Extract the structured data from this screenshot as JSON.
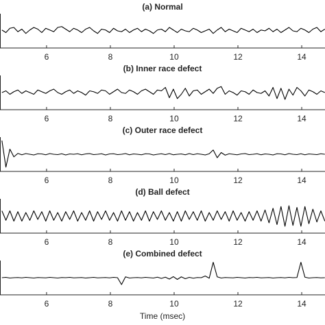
{
  "chart_data": [
    {
      "type": "line",
      "title": "(a) Normal",
      "color": "#000000",
      "xlim": [
        4.54,
        14.73
      ],
      "xticks": [
        6,
        8,
        10,
        12,
        14
      ],
      "ylim": [
        -1,
        1
      ],
      "x": [
        4.6,
        4.725,
        4.85,
        4.975,
        5.1,
        5.225,
        5.35,
        5.475,
        5.6,
        5.725,
        5.85,
        5.975,
        6.1,
        6.225,
        6.35,
        6.475,
        6.6,
        6.725,
        6.85,
        6.975,
        7.1,
        7.225,
        7.35,
        7.475,
        7.6,
        7.725,
        7.85,
        7.975,
        8.1,
        8.225,
        8.35,
        8.475,
        8.6,
        8.725,
        8.85,
        8.975,
        9.1,
        9.225,
        9.35,
        9.475,
        9.6,
        9.725,
        9.85,
        9.975,
        10.1,
        10.225,
        10.35,
        10.475,
        10.6,
        10.725,
        10.85,
        10.975,
        11.1,
        11.225,
        11.35,
        11.475,
        11.6,
        11.725,
        11.85,
        11.975,
        12.1,
        12.225,
        12.35,
        12.475,
        12.6,
        12.725,
        12.85,
        12.975,
        13.1,
        13.225,
        13.35,
        13.475,
        13.6,
        13.725,
        13.85,
        13.975,
        14.1,
        14.225,
        14.35,
        14.475,
        14.6,
        14.725
      ],
      "values": [
        0.05,
        -0.1,
        0.15,
        0.2,
        -0.05,
        0.1,
        -0.15,
        0.05,
        0.2,
        0.1,
        -0.1,
        0.15,
        0.05,
        -0.05,
        0.2,
        0.25,
        0.1,
        -0.05,
        0.15,
        0.05,
        -0.1,
        0.1,
        0.2,
        0,
        -0.15,
        0.1,
        0.05,
        -0.1,
        0.15,
        0,
        -0.05,
        0.1,
        -0.1,
        0.05,
        0.15,
        -0.05,
        0.1,
        0,
        -0.15,
        0.05,
        0.1,
        -0.05,
        0.2,
        0.05,
        -0.1,
        0.1,
        0,
        -0.05,
        0.15,
        0.05,
        -0.1,
        0,
        0.1,
        -0.15,
        0.05,
        0.2,
        -0.05,
        0.1,
        0,
        -0.1,
        0.15,
        0.05,
        -0.05,
        0.1,
        -0.1,
        0.05,
        0,
        0.15,
        -0.05,
        0.1,
        -0.1,
        0.05,
        0.2,
        0,
        -0.05,
        0.15,
        0.05,
        -0.1,
        0.1,
        0.2,
        -0.05,
        0.1
      ]
    },
    {
      "type": "line",
      "title": "(b) Inner race defect",
      "color": "#000000",
      "xlim": [
        4.54,
        14.73
      ],
      "xticks": [
        6,
        8,
        10,
        12,
        14
      ],
      "ylim": [
        -1,
        1
      ],
      "x": [
        4.6,
        4.725,
        4.85,
        4.975,
        5.1,
        5.225,
        5.35,
        5.475,
        5.6,
        5.725,
        5.85,
        5.975,
        6.1,
        6.225,
        6.35,
        6.475,
        6.6,
        6.725,
        6.85,
        6.975,
        7.1,
        7.225,
        7.35,
        7.475,
        7.6,
        7.725,
        7.85,
        7.975,
        8.1,
        8.225,
        8.35,
        8.475,
        8.6,
        8.725,
        8.85,
        8.975,
        9.1,
        9.225,
        9.35,
        9.475,
        9.6,
        9.725,
        9.85,
        9.975,
        10.1,
        10.225,
        10.35,
        10.475,
        10.6,
        10.725,
        10.85,
        10.975,
        11.1,
        11.225,
        11.35,
        11.475,
        11.6,
        11.725,
        11.85,
        11.975,
        12.1,
        12.225,
        12.35,
        12.475,
        12.6,
        12.725,
        12.85,
        12.975,
        13.1,
        13.225,
        13.35,
        13.475,
        13.6,
        13.725,
        13.85,
        13.975,
        14.1,
        14.225,
        14.35,
        14.475,
        14.6,
        14.725
      ],
      "values": [
        0,
        0.1,
        -0.1,
        0.05,
        0.15,
        -0.05,
        0.1,
        0,
        -0.1,
        0.15,
        0.05,
        -0.05,
        0.1,
        0.2,
        0,
        -0.1,
        0.05,
        0.15,
        -0.05,
        0.1,
        0,
        -0.15,
        0.1,
        0.05,
        -0.05,
        0.15,
        0.1,
        -0.1,
        0.05,
        0.2,
        0,
        -0.05,
        0.15,
        0.05,
        -0.1,
        0.1,
        0.2,
        0.05,
        -0.1,
        0.15,
        0.1,
        0.3,
        -0.3,
        0.2,
        -0.35,
        -0.1,
        0.25,
        -0.2,
        0.1,
        0.15,
        -0.1,
        0.05,
        0.2,
        -0.05,
        0.25,
        0.35,
        -0.1,
        0.1,
        0,
        -0.15,
        0.1,
        0.05,
        -0.1,
        0.15,
        0,
        -0.05,
        0.1,
        -0.2,
        0.3,
        -0.35,
        0.25,
        -0.4,
        0.2,
        -0.15,
        0.3,
        0.1,
        -0.2,
        0.15,
        0.05,
        -0.1,
        0.1,
        0
      ]
    },
    {
      "type": "line",
      "title": "(c) Outer race defect",
      "color": "#000000",
      "xlim": [
        4.54,
        14.73
      ],
      "xticks": [
        6,
        8,
        10,
        12,
        14
      ],
      "ylim": [
        -1,
        1
      ],
      "x": [
        4.6,
        4.725,
        4.85,
        4.975,
        5.1,
        5.225,
        5.35,
        5.475,
        5.6,
        5.725,
        5.85,
        5.975,
        6.1,
        6.225,
        6.35,
        6.475,
        6.6,
        6.725,
        6.85,
        6.975,
        7.1,
        7.225,
        7.35,
        7.475,
        7.6,
        7.725,
        7.85,
        7.975,
        8.1,
        8.225,
        8.35,
        8.475,
        8.6,
        8.725,
        8.85,
        8.975,
        9.1,
        9.225,
        9.35,
        9.475,
        9.6,
        9.725,
        9.85,
        9.975,
        10.1,
        10.225,
        10.35,
        10.475,
        10.6,
        10.725,
        10.85,
        10.975,
        11.1,
        11.225,
        11.35,
        11.475,
        11.6,
        11.725,
        11.85,
        11.975,
        12.1,
        12.225,
        12.35,
        12.475,
        12.6,
        12.725,
        12.85,
        12.975,
        13.1,
        13.225,
        13.35,
        13.475,
        13.6,
        13.725,
        13.85,
        13.975,
        14.1,
        14.225,
        14.35,
        14.475,
        14.6,
        14.725
      ],
      "values": [
        0.8,
        -0.75,
        0.3,
        -0.15,
        0.05,
        -0.03,
        0.04,
        0,
        -0.04,
        0.03,
        0.02,
        -0.03,
        0.04,
        0,
        -0.02,
        0.03,
        -0.04,
        0.02,
        0,
        0.03,
        -0.03,
        0.02,
        0.04,
        -0.02,
        0,
        0.03,
        -0.04,
        0.02,
        0.03,
        -0.02,
        0,
        0.04,
        -0.03,
        0.02,
        0,
        -0.03,
        0.03,
        0.02,
        -0.04,
        0,
        0.03,
        -0.02,
        0.04,
        -0.03,
        0,
        0.02,
        -0.03,
        0.04,
        -0.02,
        0.03,
        0,
        -0.04,
        0.03,
        0.25,
        -0.2,
        0.1,
        -0.05,
        0.03,
        0,
        -0.03,
        0.02,
        0.04,
        -0.02,
        0,
        0.03,
        -0.03,
        0.02,
        0,
        -0.04,
        0.03,
        0.02,
        -0.03,
        0.04,
        0,
        -0.02,
        0.03,
        -0.03,
        0.02,
        0,
        -0.02,
        0.03,
        0
      ]
    },
    {
      "type": "line",
      "title": "(d) Ball defect",
      "color": "#000000",
      "xlim": [
        4.54,
        14.73
      ],
      "xticks": [
        6,
        8,
        10,
        12,
        14
      ],
      "ylim": [
        -1,
        1
      ],
      "x": [
        4.6,
        4.725,
        4.85,
        4.975,
        5.1,
        5.225,
        5.35,
        5.475,
        5.6,
        5.725,
        5.85,
        5.975,
        6.1,
        6.225,
        6.35,
        6.475,
        6.6,
        6.725,
        6.85,
        6.975,
        7.1,
        7.225,
        7.35,
        7.475,
        7.6,
        7.725,
        7.85,
        7.975,
        8.1,
        8.225,
        8.35,
        8.475,
        8.6,
        8.725,
        8.85,
        8.975,
        9.1,
        9.225,
        9.35,
        9.475,
        9.6,
        9.725,
        9.85,
        9.975,
        10.1,
        10.225,
        10.35,
        10.475,
        10.6,
        10.725,
        10.85,
        10.975,
        11.1,
        11.225,
        11.35,
        11.475,
        11.6,
        11.725,
        11.85,
        11.975,
        12.1,
        12.225,
        12.35,
        12.475,
        12.6,
        12.725,
        12.85,
        12.975,
        13.1,
        13.225,
        13.35,
        13.475,
        13.6,
        13.725,
        13.85,
        13.975,
        14.1,
        14.225,
        14.35,
        14.475,
        14.6,
        14.725
      ],
      "values": [
        0.3,
        -0.25,
        0.3,
        -0.3,
        0.25,
        -0.3,
        0.2,
        -0.25,
        0.3,
        -0.2,
        0.25,
        -0.3,
        0.3,
        -0.25,
        0.2,
        -0.3,
        0.25,
        -0.2,
        0.3,
        -0.3,
        0.2,
        -0.25,
        0.3,
        -0.3,
        0.25,
        -0.2,
        0.3,
        -0.25,
        0.2,
        -0.3,
        0.3,
        -0.25,
        0.25,
        -0.3,
        0.2,
        -0.25,
        0.3,
        -0.3,
        0.25,
        -0.2,
        0.3,
        -0.25,
        0.2,
        -0.3,
        0.25,
        -0.3,
        0.3,
        -0.2,
        0.25,
        -0.25,
        0.3,
        -0.3,
        0.2,
        -0.25,
        0.3,
        -0.2,
        0.25,
        -0.3,
        0.3,
        -0.25,
        0.2,
        -0.3,
        0.25,
        -0.25,
        0.3,
        -0.3,
        0.35,
        -0.4,
        0.45,
        -0.5,
        0.55,
        -0.6,
        0.6,
        -0.55,
        0.5,
        -0.6,
        0.55,
        -0.45,
        0.4,
        -0.35,
        0.3,
        -0.3
      ]
    },
    {
      "type": "line",
      "title": "(e) Combined defect",
      "xlabel": "Time (msec)",
      "color": "#000000",
      "xlim": [
        4.54,
        14.73
      ],
      "xticks": [
        6,
        8,
        10,
        12,
        14
      ],
      "ylim": [
        -1,
        1
      ],
      "x": [
        4.6,
        4.725,
        4.85,
        4.975,
        5.1,
        5.225,
        5.35,
        5.475,
        5.6,
        5.725,
        5.85,
        5.975,
        6.1,
        6.225,
        6.35,
        6.475,
        6.6,
        6.725,
        6.85,
        6.975,
        7.1,
        7.225,
        7.35,
        7.475,
        7.6,
        7.725,
        7.85,
        7.975,
        8.1,
        8.225,
        8.35,
        8.475,
        8.6,
        8.725,
        8.85,
        8.975,
        9.1,
        9.225,
        9.35,
        9.475,
        9.6,
        9.725,
        9.85,
        9.975,
        10.1,
        10.225,
        10.35,
        10.475,
        10.6,
        10.725,
        10.85,
        10.975,
        11.1,
        11.225,
        11.35,
        11.475,
        11.6,
        11.725,
        11.85,
        11.975,
        12.1,
        12.225,
        12.35,
        12.475,
        12.6,
        12.725,
        12.85,
        12.975,
        13.1,
        13.225,
        13.35,
        13.475,
        13.6,
        13.725,
        13.85,
        13.975,
        14.1,
        14.225,
        14.35,
        14.475,
        14.6,
        14.725
      ],
      "values": [
        0,
        0.02,
        -0.02,
        0,
        0.01,
        -0.01,
        0.02,
        0,
        -0.02,
        0.01,
        0,
        -0.01,
        0.02,
        0,
        -0.02,
        0.01,
        0,
        0.02,
        -0.01,
        0,
        0.01,
        -0.02,
        0,
        0.02,
        -0.01,
        0,
        0.01,
        -0.01,
        0.02,
        0,
        -0.4,
        0.05,
        -0.02,
        0,
        0.01,
        -0.01,
        0.02,
        0,
        -0.02,
        0.03,
        -0.04,
        0.03,
        -0.08,
        0.06,
        -0.1,
        0.05,
        -0.06,
        0.02,
        -0.03,
        0.01,
        0,
        0.1,
        -0.03,
        0.9,
        0.05,
        -0.02,
        0.01,
        0,
        -0.01,
        0.02,
        0,
        -0.02,
        0.01,
        0,
        0.02,
        -0.01,
        0,
        0.01,
        -0.02,
        0,
        0.01,
        -0.01,
        0.02,
        0,
        0.01,
        0.9,
        0.03,
        -0.02,
        0,
        0.01,
        -0.01,
        0
      ]
    }
  ]
}
